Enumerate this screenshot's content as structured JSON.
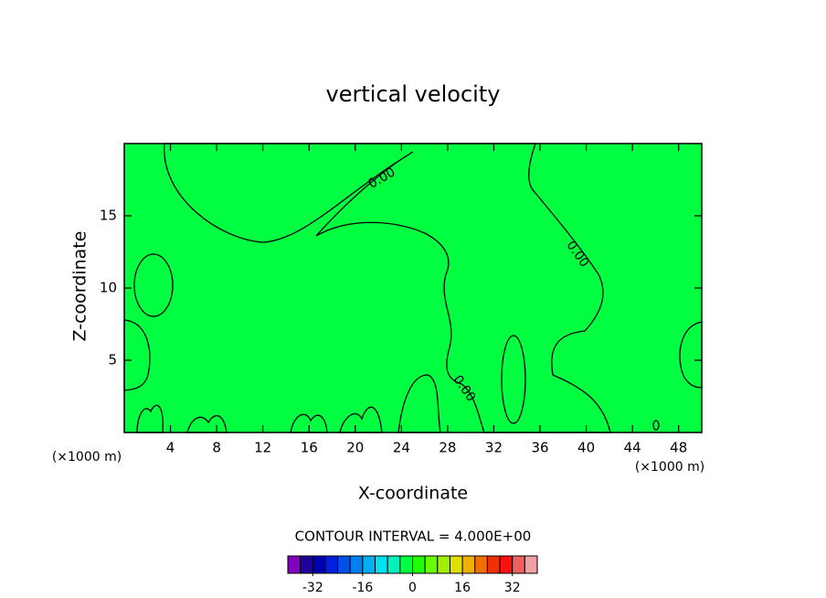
{
  "chart_data": {
    "type": "contour",
    "title": "vertical velocity",
    "x_label": "X-coordinate",
    "y_label": "Z-coordinate",
    "x_unit_label": "(×1000 m)",
    "xlim": [
      0,
      50
    ],
    "xticks": [
      4,
      8,
      12,
      16,
      20,
      24,
      28,
      32,
      36,
      40,
      44,
      48
    ],
    "ylim": [
      0,
      20
    ],
    "yticks": [
      5,
      10,
      15
    ],
    "contour_labels": [
      "0.00",
      "0.00",
      "0.00"
    ],
    "contour_interval_label": "CONTOUR INTERVAL = 4.000E+00",
    "colorbar": {
      "clim": [
        -40,
        40
      ],
      "ticks": [
        -32,
        -16,
        0,
        16,
        32
      ],
      "colors": [
        "#8000c0",
        "#2000a0",
        "#0000b0",
        "#0020e0",
        "#0050e8",
        "#0080f0",
        "#00b0f0",
        "#00e0f0",
        "#00f0c0",
        "#00ff40",
        "#22ff00",
        "#66ff00",
        "#a0f000",
        "#e0e000",
        "#f0b000",
        "#f07000",
        "#f03000",
        "#ff1010",
        "#f06060",
        "#f0a0a0"
      ]
    }
  }
}
